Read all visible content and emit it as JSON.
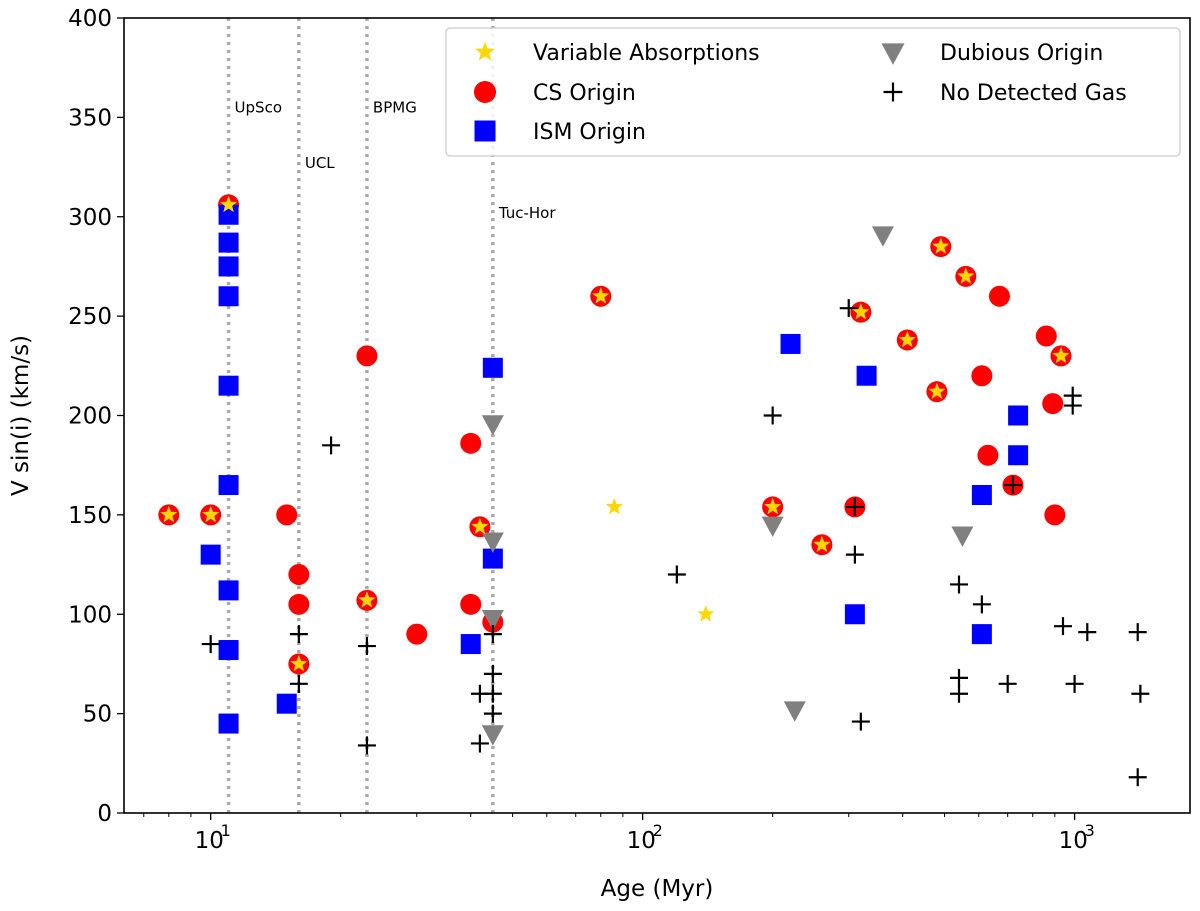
{
  "chart_data": {
    "type": "scatter",
    "x_scale": "log",
    "xlabel": "Age (Myr)",
    "ylabel": "V sin(i) (km/s)",
    "xlim": [
      6.3,
      1850
    ],
    "ylim": [
      0,
      400
    ],
    "yticks": [
      0,
      50,
      100,
      150,
      200,
      250,
      300,
      350,
      400
    ],
    "xticks": [
      {
        "value": 10,
        "base": "10",
        "exp": "1"
      },
      {
        "value": 100,
        "base": "10",
        "exp": "2"
      },
      {
        "value": 1000,
        "base": "10",
        "exp": "3"
      }
    ],
    "group_lines": [
      {
        "name": "UpSco",
        "age": 11,
        "label_y": 355
      },
      {
        "name": "UCL",
        "age": 16,
        "label_y": 327
      },
      {
        "name": "BPMG",
        "age": 23,
        "label_y": 355
      },
      {
        "name": "Tuc-Hor",
        "age": 45,
        "label_y": 302
      }
    ],
    "colors": {
      "star": "#ffd700",
      "cs": "#ff0000",
      "ism": "#0000ff",
      "dubious": "#808080",
      "nogas": "#000000",
      "guide": "#a9a9a9"
    },
    "legend": {
      "placement": "top-right",
      "entries": [
        {
          "key": "star",
          "label": "Variable Absorptions"
        },
        {
          "key": "cs",
          "label": "CS Origin"
        },
        {
          "key": "ism",
          "label": "ISM Origin"
        },
        {
          "key": "dubious",
          "label": "Dubious Origin"
        },
        {
          "key": "nogas",
          "label": "No Detected Gas"
        }
      ]
    },
    "series": [
      {
        "name": "CS Origin",
        "key": "cs",
        "marker": "circle",
        "points": [
          [
            8,
            150
          ],
          [
            10,
            150
          ],
          [
            11,
            306
          ],
          [
            15,
            150
          ],
          [
            16,
            120
          ],
          [
            16,
            105
          ],
          [
            16,
            75
          ],
          [
            23,
            230
          ],
          [
            23,
            107
          ],
          [
            30,
            90
          ],
          [
            40,
            186
          ],
          [
            40,
            105
          ],
          [
            42,
            144
          ],
          [
            45,
            96
          ],
          [
            80,
            260
          ],
          [
            200,
            154
          ],
          [
            260,
            135
          ],
          [
            310,
            154
          ],
          [
            320,
            252
          ],
          [
            410,
            238
          ],
          [
            480,
            212
          ],
          [
            490,
            285
          ],
          [
            560,
            270
          ],
          [
            610,
            220
          ],
          [
            630,
            180
          ],
          [
            670,
            260
          ],
          [
            720,
            165
          ],
          [
            860,
            240
          ],
          [
            890,
            206
          ],
          [
            900,
            150
          ],
          [
            930,
            230
          ]
        ]
      },
      {
        "name": "ISM Origin",
        "key": "ism",
        "marker": "square",
        "points": [
          [
            10,
            130
          ],
          [
            11,
            301
          ],
          [
            11,
            287
          ],
          [
            11,
            275
          ],
          [
            11,
            260
          ],
          [
            11,
            215
          ],
          [
            11,
            165
          ],
          [
            11,
            112
          ],
          [
            11,
            82
          ],
          [
            11,
            45
          ],
          [
            15,
            55
          ],
          [
            40,
            85
          ],
          [
            45,
            224
          ],
          [
            45,
            128
          ],
          [
            220,
            236
          ],
          [
            310,
            100
          ],
          [
            330,
            220
          ],
          [
            610,
            90
          ],
          [
            610,
            160
          ],
          [
            740,
            200
          ],
          [
            740,
            180
          ]
        ]
      },
      {
        "name": "Dubious Origin",
        "key": "dubious",
        "marker": "triangle-down",
        "points": [
          [
            45,
            196
          ],
          [
            45,
            137
          ],
          [
            45,
            98
          ],
          [
            45,
            40
          ],
          [
            200,
            145
          ],
          [
            225,
            52
          ],
          [
            360,
            291
          ],
          [
            550,
            140
          ]
        ]
      },
      {
        "name": "No Detected Gas",
        "key": "nogas",
        "marker": "plus",
        "points": [
          [
            10,
            85
          ],
          [
            16,
            90
          ],
          [
            16,
            65
          ],
          [
            19,
            185
          ],
          [
            23,
            84
          ],
          [
            23,
            34
          ],
          [
            42,
            60
          ],
          [
            42,
            35
          ],
          [
            45,
            90
          ],
          [
            45,
            70
          ],
          [
            45,
            60
          ],
          [
            45,
            50
          ],
          [
            120,
            120
          ],
          [
            200,
            200
          ],
          [
            300,
            254
          ],
          [
            310,
            154
          ],
          [
            310,
            130
          ],
          [
            320,
            46
          ],
          [
            540,
            115
          ],
          [
            540,
            68
          ],
          [
            540,
            60
          ],
          [
            610,
            105
          ],
          [
            700,
            65
          ],
          [
            720,
            165
          ],
          [
            940,
            94
          ],
          [
            990,
            210
          ],
          [
            990,
            205
          ],
          [
            1000,
            65
          ],
          [
            1070,
            91
          ],
          [
            1400,
            91
          ],
          [
            1420,
            60
          ],
          [
            1400,
            18
          ]
        ]
      },
      {
        "name": "Variable Absorptions",
        "key": "star",
        "marker": "star",
        "points": [
          [
            8,
            150
          ],
          [
            10,
            150
          ],
          [
            11,
            306
          ],
          [
            16,
            75
          ],
          [
            23,
            107
          ],
          [
            42,
            144
          ],
          [
            80,
            260
          ],
          [
            86,
            154
          ],
          [
            140,
            100
          ],
          [
            200,
            154
          ],
          [
            260,
            135
          ],
          [
            320,
            252
          ],
          [
            410,
            238
          ],
          [
            480,
            212
          ],
          [
            490,
            285
          ],
          [
            560,
            270
          ],
          [
            930,
            230
          ]
        ]
      }
    ]
  }
}
